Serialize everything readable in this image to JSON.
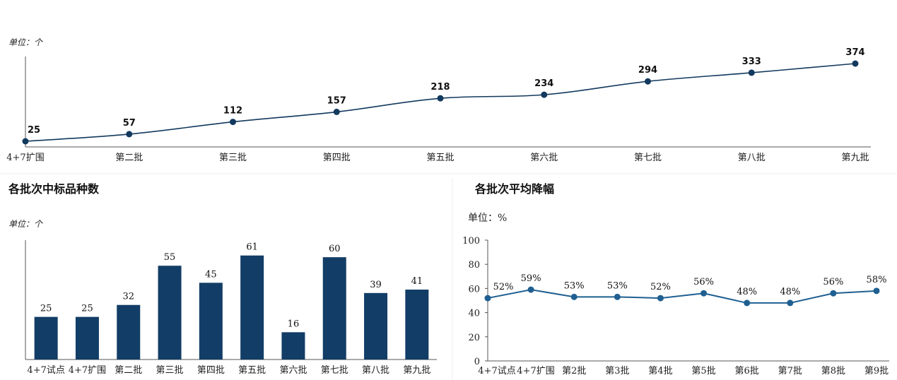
{
  "chart_data": [
    {
      "type": "line",
      "title": "",
      "unit_label": "单位：个",
      "categories": [
        "4+7扩围",
        "第二批",
        "第三批",
        "第四批",
        "第五批",
        "第六批",
        "第七批",
        "第八批",
        "第九批"
      ],
      "values": [
        25,
        57,
        112,
        157,
        218,
        234,
        294,
        333,
        374
      ],
      "color": "#12395e",
      "grid": false
    },
    {
      "type": "bar",
      "title": "各批次中标品种数",
      "unit_label": "单位：个",
      "categories": [
        "4+7试点",
        "4+7扩围",
        "第二批",
        "第三批",
        "第四批",
        "第五批",
        "第六批",
        "第七批",
        "第八批",
        "第九批"
      ],
      "values": [
        25,
        25,
        32,
        55,
        45,
        61,
        16,
        60,
        39,
        41
      ],
      "color": "#123d66",
      "ylim": [
        0,
        70
      ],
      "grid": false
    },
    {
      "type": "line",
      "title": "各批次平均降幅",
      "unit_label": "单位：%",
      "categories": [
        "4+7试点",
        "4+7扩围",
        "第2批",
        "第3批",
        "第4批",
        "第5批",
        "第6批",
        "第7批",
        "第8批",
        "第9批"
      ],
      "values": [
        52,
        59,
        53,
        53,
        52,
        56,
        48,
        48,
        56,
        58
      ],
      "value_labels": [
        "52%",
        "59%",
        "53%",
        "53%",
        "52%",
        "56%",
        "48%",
        "48%",
        "56%",
        "58%"
      ],
      "yticks": [
        "0",
        "20",
        "40",
        "60",
        "80",
        "100"
      ],
      "ylim": [
        0,
        100
      ],
      "color": "#1f5f91",
      "grid": false
    }
  ]
}
